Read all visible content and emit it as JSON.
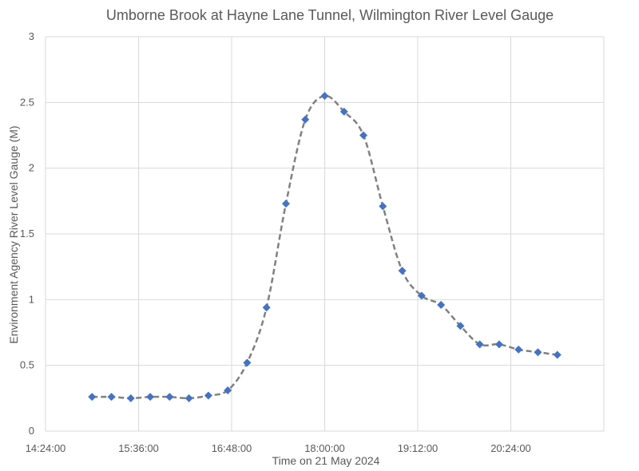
{
  "chart_data": {
    "type": "line",
    "title": "Umborne Brook at Hayne Lane Tunnel, Wilmington River Level Gauge",
    "xlabel": "Time on 21 May 2024",
    "ylabel": "Environment Agency River Level Gauge (M)",
    "x_ticks": [
      "14:24:00",
      "15:36:00",
      "16:48:00",
      "18:00:00",
      "19:12:00",
      "20:24:00"
    ],
    "y_ticks": [
      "0",
      "0.5",
      "1",
      "1.5",
      "2",
      "2.5",
      "3"
    ],
    "xlim": [
      "14:24:00",
      "21:36:00"
    ],
    "ylim": [
      0,
      3
    ],
    "grid": true,
    "marker_color": "#4472c4",
    "line_color": "#808080",
    "series": [
      {
        "x": [
          "15:00:00",
          "15:15:00",
          "15:30:00",
          "15:45:00",
          "16:00:00",
          "16:15:00",
          "16:30:00",
          "16:45:00",
          "17:00:00",
          "17:15:00",
          "17:30:00",
          "17:45:00",
          "18:00:00",
          "18:15:00",
          "18:30:00",
          "18:45:00",
          "19:00:00",
          "19:15:00",
          "19:30:00",
          "19:45:00",
          "20:00:00",
          "20:15:00",
          "20:30:00",
          "20:45:00",
          "21:00:00"
        ],
        "y": [
          0.26,
          0.26,
          0.25,
          0.26,
          0.26,
          0.25,
          0.27,
          0.31,
          0.52,
          0.94,
          1.73,
          2.37,
          2.55,
          2.43,
          2.25,
          1.71,
          1.22,
          1.03,
          0.96,
          0.8,
          0.66,
          0.66,
          0.62,
          0.6,
          0.58
        ]
      }
    ]
  }
}
